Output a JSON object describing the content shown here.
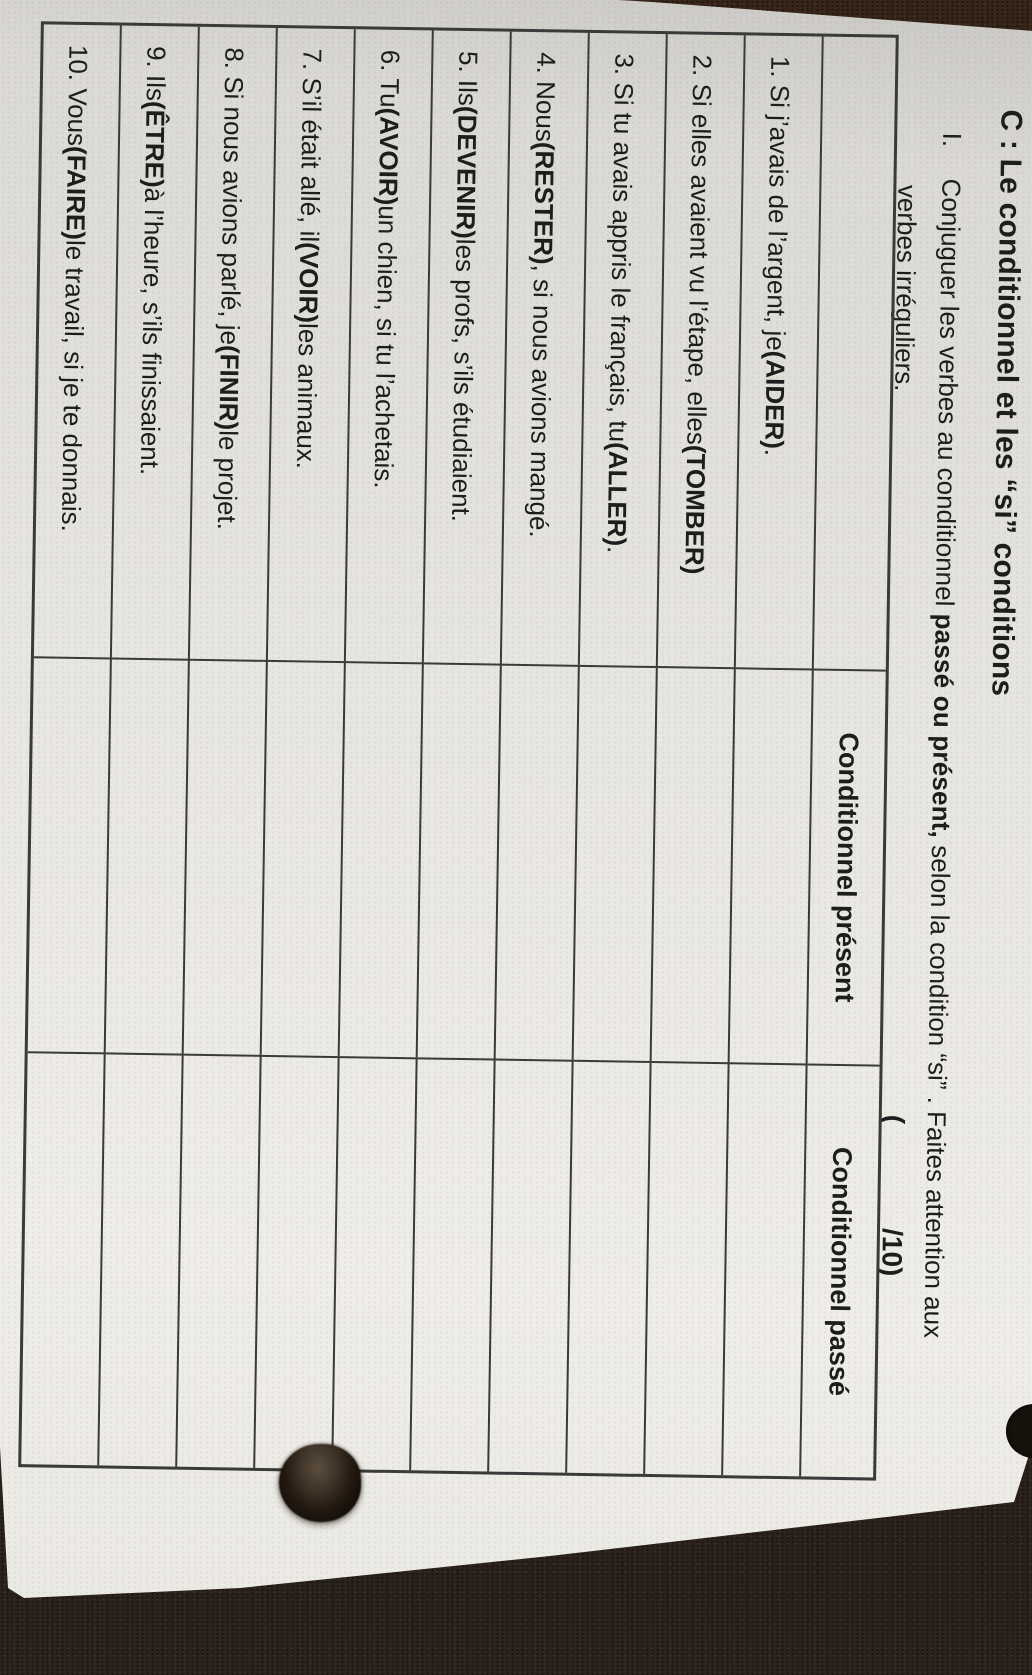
{
  "document": {
    "title": "C : Le conditionnel et les “si” conditions",
    "instruction": {
      "numeral": "I.",
      "line1_regular": "Conjuguer les verbes au conditionnel ",
      "line1_bold": "passé ou présent,",
      "line1_rest": " selon la condition “si” . Faites attention aux",
      "line2": "verbes irréguliers.",
      "score_open": "(",
      "score_close": "/10)"
    },
    "table": {
      "headers": [
        "",
        "Conditionnel présent",
        "Conditionnel passé"
      ],
      "rows": [
        {
          "pre": "1. Si j’avais de l’argent, je ",
          "verb": "(AIDER)",
          "post": ".",
          "present": "",
          "past": ""
        },
        {
          "pre": "2. Si elles avaient vu l’étape, elles ",
          "verb": "(TOMBER)",
          "post": "",
          "present": "",
          "past": ""
        },
        {
          "pre": "3. Si tu avais appris le français, tu ",
          "verb": "(ALLER)",
          "post": ".",
          "present": "",
          "past": ""
        },
        {
          "pre": "4. Nous ",
          "verb": "(RESTER)",
          "post": ", si nous avions mangé.",
          "present": "",
          "past": ""
        },
        {
          "pre": "5. Ils ",
          "verb": "(DEVENIR)",
          "post": " les profs, s’ils étudiaient.",
          "present": "",
          "past": ""
        },
        {
          "pre": "6. Tu ",
          "verb": "(AVOIR)",
          "post": " un chien, si tu l’achetais.",
          "present": "",
          "past": ""
        },
        {
          "pre": "7. S’il était allé, il ",
          "verb": "(VOIR)",
          "post": " les animaux.",
          "present": "",
          "past": ""
        },
        {
          "pre": "8. Si nous avions parlé, je ",
          "verb": "(FINIR)",
          "post": " le projet.",
          "present": "",
          "past": ""
        },
        {
          "pre": "9. Ils ",
          "verb": "(ÊTRE)",
          "post": " à l’heure, s’ils finissaient.",
          "present": "",
          "past": ""
        },
        {
          "pre": "10. Vous ",
          "verb": "(FAIRE)",
          "post": " le travail, si je te donnais.",
          "present": "",
          "past": ""
        }
      ]
    }
  },
  "photo": {
    "background_color": "#271e17",
    "paper_color": "#e7e5e0",
    "line_color": "#3a3a3a",
    "objects": [
      "black-fuzzy-pom",
      "punched-hole"
    ]
  }
}
